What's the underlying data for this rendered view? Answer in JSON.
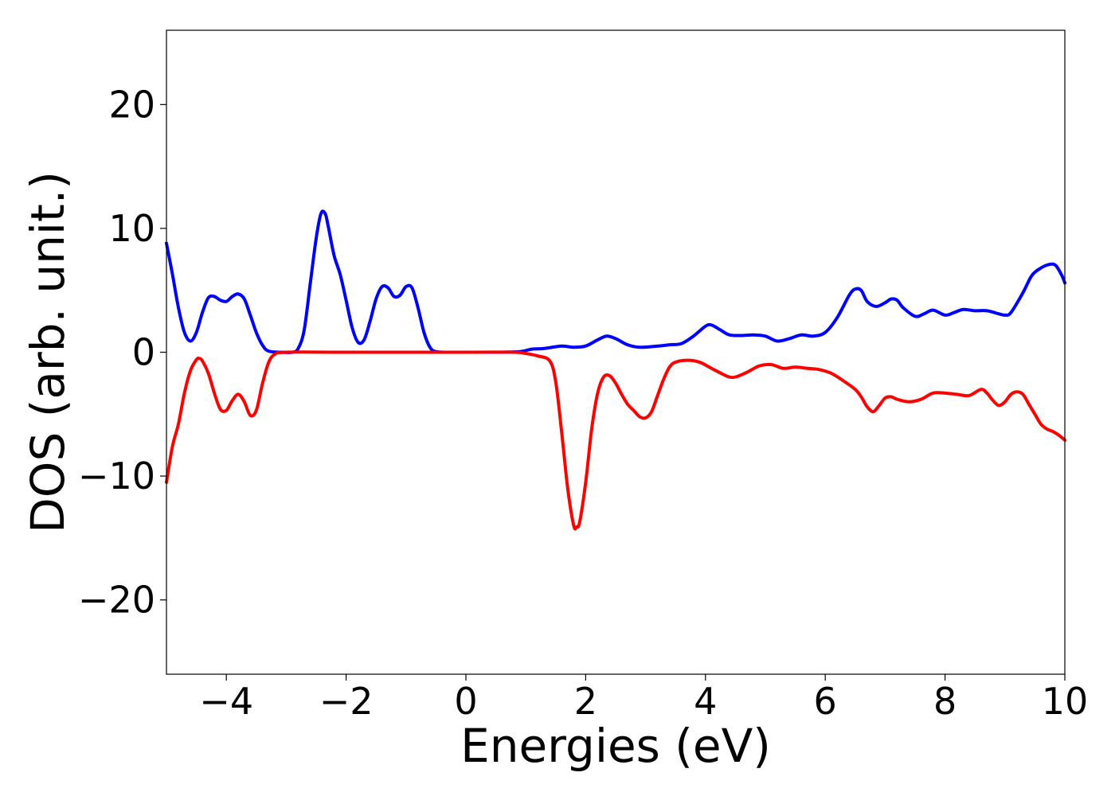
{
  "chart_data": {
    "type": "line",
    "title": "",
    "xlabel": "Energies (eV)",
    "ylabel": "DOS (arb. unit.)",
    "xlim": [
      -5,
      10
    ],
    "ylim": [
      -26,
      26
    ],
    "grid": false,
    "legend": "none",
    "x_ticks": [
      -4,
      -2,
      0,
      2,
      4,
      6,
      8,
      10
    ],
    "x_tick_labels": [
      "−4",
      "−2",
      "0",
      "2",
      "4",
      "6",
      "8",
      "10"
    ],
    "y_ticks": [
      20,
      10,
      0,
      -10,
      -20
    ],
    "y_tick_labels": [
      "20",
      "10",
      "0",
      "−10",
      "−20"
    ],
    "series": [
      {
        "color": "#0000ff",
        "points": [
          [
            -5.0,
            8.8
          ],
          [
            -4.9,
            6.3
          ],
          [
            -4.8,
            3.6
          ],
          [
            -4.7,
            1.6
          ],
          [
            -4.6,
            0.9
          ],
          [
            -4.5,
            1.6
          ],
          [
            -4.4,
            3.2
          ],
          [
            -4.3,
            4.4
          ],
          [
            -4.2,
            4.5
          ],
          [
            -4.1,
            4.2
          ],
          [
            -4.0,
            4.1
          ],
          [
            -3.9,
            4.5
          ],
          [
            -3.8,
            4.7
          ],
          [
            -3.7,
            4.3
          ],
          [
            -3.6,
            3.0
          ],
          [
            -3.5,
            1.6
          ],
          [
            -3.4,
            0.6
          ],
          [
            -3.3,
            0.1
          ],
          [
            -3.1,
            0.0
          ],
          [
            -2.9,
            0.0
          ],
          [
            -2.8,
            0.3
          ],
          [
            -2.7,
            1.8
          ],
          [
            -2.6,
            5.5
          ],
          [
            -2.5,
            9.2
          ],
          [
            -2.42,
            11.2
          ],
          [
            -2.35,
            11.2
          ],
          [
            -2.3,
            10.2
          ],
          [
            -2.2,
            7.8
          ],
          [
            -2.1,
            6.3
          ],
          [
            -2.0,
            4.2
          ],
          [
            -1.9,
            2.0
          ],
          [
            -1.8,
            0.8
          ],
          [
            -1.7,
            1.0
          ],
          [
            -1.6,
            2.5
          ],
          [
            -1.5,
            4.3
          ],
          [
            -1.4,
            5.3
          ],
          [
            -1.3,
            5.2
          ],
          [
            -1.2,
            4.5
          ],
          [
            -1.1,
            4.6
          ],
          [
            -1.0,
            5.3
          ],
          [
            -0.9,
            5.2
          ],
          [
            -0.8,
            3.6
          ],
          [
            -0.7,
            1.6
          ],
          [
            -0.6,
            0.4
          ],
          [
            -0.5,
            0.05
          ],
          [
            -0.3,
            0.0
          ],
          [
            0.0,
            0.0
          ],
          [
            0.5,
            0.0
          ],
          [
            0.9,
            0.05
          ],
          [
            1.1,
            0.25
          ],
          [
            1.3,
            0.3
          ],
          [
            1.6,
            0.5
          ],
          [
            1.8,
            0.4
          ],
          [
            2.0,
            0.5
          ],
          [
            2.2,
            1.0
          ],
          [
            2.35,
            1.3
          ],
          [
            2.5,
            1.1
          ],
          [
            2.7,
            0.6
          ],
          [
            2.9,
            0.4
          ],
          [
            3.2,
            0.5
          ],
          [
            3.4,
            0.6
          ],
          [
            3.6,
            0.7
          ],
          [
            3.8,
            1.3
          ],
          [
            4.0,
            2.1
          ],
          [
            4.1,
            2.2
          ],
          [
            4.25,
            1.8
          ],
          [
            4.4,
            1.4
          ],
          [
            4.6,
            1.35
          ],
          [
            4.8,
            1.4
          ],
          [
            5.0,
            1.3
          ],
          [
            5.2,
            0.9
          ],
          [
            5.4,
            1.1
          ],
          [
            5.6,
            1.4
          ],
          [
            5.8,
            1.3
          ],
          [
            6.0,
            1.6
          ],
          [
            6.2,
            2.8
          ],
          [
            6.4,
            4.6
          ],
          [
            6.5,
            5.1
          ],
          [
            6.6,
            5.0
          ],
          [
            6.7,
            4.1
          ],
          [
            6.85,
            3.7
          ],
          [
            7.0,
            4.0
          ],
          [
            7.1,
            4.3
          ],
          [
            7.2,
            4.2
          ],
          [
            7.3,
            3.6
          ],
          [
            7.5,
            2.9
          ],
          [
            7.65,
            3.1
          ],
          [
            7.8,
            3.4
          ],
          [
            8.0,
            3.0
          ],
          [
            8.15,
            3.2
          ],
          [
            8.3,
            3.45
          ],
          [
            8.5,
            3.35
          ],
          [
            8.7,
            3.35
          ],
          [
            8.9,
            3.1
          ],
          [
            9.0,
            3.0
          ],
          [
            9.1,
            3.2
          ],
          [
            9.3,
            4.8
          ],
          [
            9.45,
            6.2
          ],
          [
            9.6,
            6.8
          ],
          [
            9.75,
            7.1
          ],
          [
            9.85,
            7.0
          ],
          [
            9.95,
            6.2
          ],
          [
            10.0,
            5.6
          ]
        ]
      },
      {
        "color": "#ff0000",
        "points": [
          [
            -5.0,
            -10.5
          ],
          [
            -4.9,
            -7.6
          ],
          [
            -4.8,
            -5.8
          ],
          [
            -4.7,
            -3.3
          ],
          [
            -4.6,
            -1.5
          ],
          [
            -4.5,
            -0.6
          ],
          [
            -4.45,
            -0.5
          ],
          [
            -4.4,
            -0.7
          ],
          [
            -4.3,
            -1.7
          ],
          [
            -4.2,
            -3.3
          ],
          [
            -4.1,
            -4.6
          ],
          [
            -4.0,
            -4.7
          ],
          [
            -3.9,
            -3.9
          ],
          [
            -3.8,
            -3.4
          ],
          [
            -3.7,
            -4.0
          ],
          [
            -3.6,
            -5.1
          ],
          [
            -3.5,
            -4.7
          ],
          [
            -3.4,
            -2.6
          ],
          [
            -3.3,
            -0.9
          ],
          [
            -3.2,
            -0.2
          ],
          [
            -3.0,
            0.0
          ],
          [
            -2.0,
            0.0
          ],
          [
            0.0,
            0.0
          ],
          [
            0.8,
            0.0
          ],
          [
            1.0,
            -0.1
          ],
          [
            1.2,
            -0.3
          ],
          [
            1.4,
            -0.7
          ],
          [
            1.5,
            -2.4
          ],
          [
            1.6,
            -6.5
          ],
          [
            1.7,
            -11.0
          ],
          [
            1.8,
            -14.0
          ],
          [
            1.85,
            -14.1
          ],
          [
            1.9,
            -13.7
          ],
          [
            2.0,
            -10.5
          ],
          [
            2.1,
            -6.2
          ],
          [
            2.2,
            -3.3
          ],
          [
            2.3,
            -2.0
          ],
          [
            2.4,
            -1.9
          ],
          [
            2.5,
            -2.5
          ],
          [
            2.6,
            -3.4
          ],
          [
            2.7,
            -4.2
          ],
          [
            2.8,
            -4.7
          ],
          [
            2.9,
            -5.2
          ],
          [
            3.0,
            -5.3
          ],
          [
            3.1,
            -4.8
          ],
          [
            3.2,
            -3.5
          ],
          [
            3.3,
            -2.2
          ],
          [
            3.4,
            -1.2
          ],
          [
            3.5,
            -0.8
          ],
          [
            3.7,
            -0.65
          ],
          [
            3.9,
            -0.8
          ],
          [
            4.1,
            -1.3
          ],
          [
            4.3,
            -1.8
          ],
          [
            4.4,
            -2.0
          ],
          [
            4.5,
            -2.0
          ],
          [
            4.7,
            -1.6
          ],
          [
            4.9,
            -1.1
          ],
          [
            5.1,
            -1.0
          ],
          [
            5.3,
            -1.3
          ],
          [
            5.5,
            -1.2
          ],
          [
            5.7,
            -1.3
          ],
          [
            5.9,
            -1.4
          ],
          [
            6.1,
            -1.7
          ],
          [
            6.3,
            -2.3
          ],
          [
            6.5,
            -3.0
          ],
          [
            6.6,
            -3.6
          ],
          [
            6.7,
            -4.4
          ],
          [
            6.8,
            -4.8
          ],
          [
            6.9,
            -4.3
          ],
          [
            7.0,
            -3.7
          ],
          [
            7.1,
            -3.6
          ],
          [
            7.2,
            -3.8
          ],
          [
            7.4,
            -4.0
          ],
          [
            7.6,
            -3.8
          ],
          [
            7.8,
            -3.3
          ],
          [
            8.0,
            -3.3
          ],
          [
            8.2,
            -3.4
          ],
          [
            8.4,
            -3.5
          ],
          [
            8.6,
            -3.0
          ],
          [
            8.7,
            -3.3
          ],
          [
            8.8,
            -3.9
          ],
          [
            8.9,
            -4.3
          ],
          [
            9.0,
            -4.0
          ],
          [
            9.1,
            -3.4
          ],
          [
            9.2,
            -3.2
          ],
          [
            9.3,
            -3.4
          ],
          [
            9.4,
            -4.2
          ],
          [
            9.5,
            -5.0
          ],
          [
            9.6,
            -5.8
          ],
          [
            9.7,
            -6.2
          ],
          [
            9.8,
            -6.4
          ],
          [
            9.9,
            -6.7
          ],
          [
            10.0,
            -7.1
          ]
        ]
      }
    ]
  }
}
